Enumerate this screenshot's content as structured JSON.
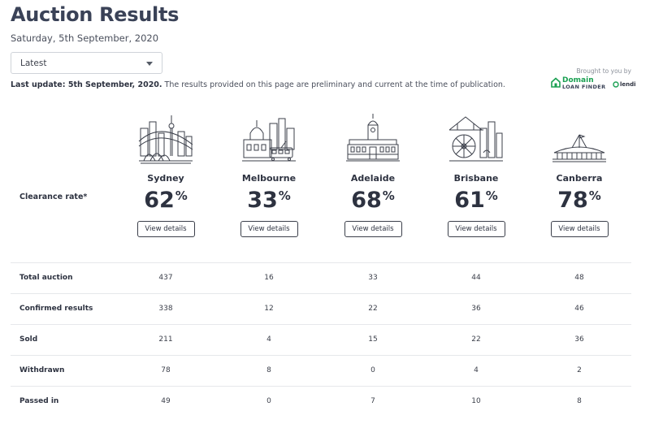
{
  "header": {
    "title": "Auction Results",
    "date": "Saturday, 5th September, 2020"
  },
  "filter": {
    "selected": "Latest"
  },
  "update": {
    "bold": "Last update: 5th September, 2020.",
    "text": " The results provided on this page are preliminary and current at the time of publication."
  },
  "sponsor": {
    "brought_by": "Brought to you by",
    "domain_line1": "Domain",
    "domain_line2": "LOAN FINDER",
    "lendi": "lendi",
    "domain_color": "#1aa052"
  },
  "clearance_label": "Clearance rate*",
  "cities": [
    {
      "name": "Sydney",
      "rate": "62",
      "unit": "%",
      "button": "View details",
      "icon": "sydney-skyline-icon"
    },
    {
      "name": "Melbourne",
      "rate": "33",
      "unit": "%",
      "button": "View details",
      "icon": "melbourne-skyline-icon"
    },
    {
      "name": "Adelaide",
      "rate": "68",
      "unit": "%",
      "button": "View details",
      "icon": "adelaide-building-icon"
    },
    {
      "name": "Brisbane",
      "rate": "61",
      "unit": "%",
      "button": "View details",
      "icon": "brisbane-skyline-icon"
    },
    {
      "name": "Canberra",
      "rate": "78",
      "unit": "%",
      "button": "View details",
      "icon": "canberra-parliament-icon"
    }
  ],
  "table": {
    "rows": [
      {
        "label": "Total auction",
        "values": [
          "437",
          "16",
          "33",
          "44",
          "48"
        ]
      },
      {
        "label": "Confirmed results",
        "values": [
          "338",
          "12",
          "22",
          "36",
          "46"
        ]
      },
      {
        "label": "Sold",
        "values": [
          "211",
          "4",
          "15",
          "22",
          "36"
        ]
      },
      {
        "label": "Withdrawn",
        "values": [
          "78",
          "8",
          "0",
          "4",
          "2"
        ]
      },
      {
        "label": "Passed in",
        "values": [
          "49",
          "0",
          "7",
          "10",
          "8"
        ]
      }
    ]
  }
}
